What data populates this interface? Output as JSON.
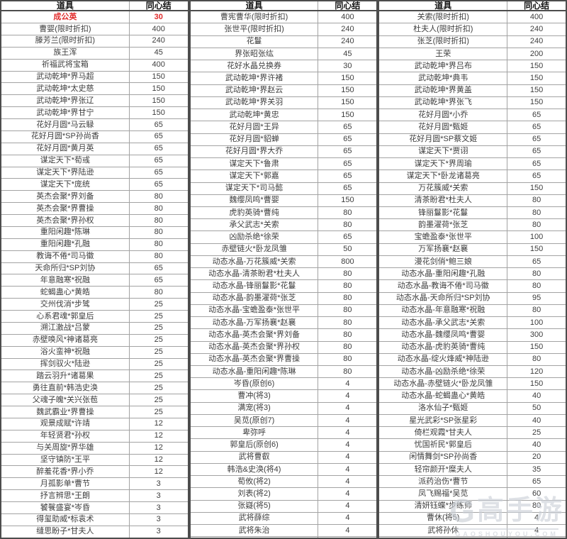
{
  "accent": {
    "highlight_color": "#e02b2b"
  },
  "watermark": {
    "logo_letter": "G",
    "brand": "高手游",
    "caption": "GAOSHOUYOU.COM"
  },
  "tables": [
    {
      "headers": [
        "道具",
        "同心结"
      ],
      "highlight_rows": [
        0
      ],
      "rows": [
        [
          "成公英",
          "30"
        ],
        [
          "曹婴(限时折扣)",
          "400"
        ],
        [
          "滕芳兰(限时折扣)",
          "240"
        ],
        [
          "族王浑",
          "45"
        ],
        [
          "祈福武将宝箱",
          "400"
        ],
        [
          "武动乾坤*界马超",
          "150"
        ],
        [
          "武动乾坤*太史慈",
          "150"
        ],
        [
          "武动乾坤*界张辽",
          "150"
        ],
        [
          "武动乾坤*界甘宁",
          "150"
        ],
        [
          "花好月圆*马云騄",
          "65"
        ],
        [
          "花好月圆*SP孙尚香",
          "65"
        ],
        [
          "花好月圆*黄月英",
          "65"
        ],
        [
          "谋定天下*荀彧",
          "65"
        ],
        [
          "谋定天下*界陆逊",
          "65"
        ],
        [
          "谋定天下*庞统",
          "65"
        ],
        [
          "英杰会聚*界刘备",
          "80"
        ],
        [
          "英杰会聚*界曹操",
          "80"
        ],
        [
          "英杰会聚*界孙权",
          "80"
        ],
        [
          "重阳闲趣*陈琳",
          "80"
        ],
        [
          "重阳闲趣*孔融",
          "80"
        ],
        [
          "教诲不倦*司马徽",
          "80"
        ],
        [
          "天命所归*SP刘协",
          "65"
        ],
        [
          "年意融寒*祝融",
          "65"
        ],
        [
          "蛇蝎蛊心*黄皓",
          "80"
        ],
        [
          "交州伐消*步骘",
          "25"
        ],
        [
          "心系君魂*郭皇后",
          "25"
        ],
        [
          "溯江激战*吕蒙",
          "25"
        ],
        [
          "赤壁唤风*神诸葛亮",
          "25"
        ],
        [
          "浴火蛮神*祝融",
          "25"
        ],
        [
          "挥剑驭火*陆逊",
          "25"
        ],
        [
          "踏云羽升*诸葛果",
          "25"
        ],
        [
          "勇往直前*韩浩史涣",
          "25"
        ],
        [
          "父魂子魄*关兴张苞",
          "25"
        ],
        [
          "魏武霸业*界曹操",
          "25"
        ],
        [
          "观景成赋*许靖",
          "12"
        ],
        [
          "年轻贤君*孙权",
          "12"
        ],
        [
          "与关周旋*界华雄",
          "12"
        ],
        [
          "坚守镇防*王平",
          "12"
        ],
        [
          "醉羞花香*界小乔",
          "12"
        ],
        [
          "月孤影单*曹节",
          "3"
        ],
        [
          "抒言辨思*王朗",
          "3"
        ],
        [
          "饕餮盛宴*岑昏",
          "3"
        ],
        [
          "得玺助威*标袁术",
          "3"
        ],
        [
          "缝思盼子*甘夫人",
          "3"
        ]
      ]
    },
    {
      "headers": [
        "道具",
        "同心结"
      ],
      "highlight_rows": [],
      "rows": [
        [
          "曹宪曹华(限时折扣)",
          "400"
        ],
        [
          "张世平(限时折扣)",
          "240"
        ],
        [
          "花鬘",
          "240"
        ],
        [
          "界张昭张纮",
          "45"
        ],
        [
          "花好水晶兑换券",
          "30"
        ],
        [
          "武动乾坤*界许褚",
          "150"
        ],
        [
          "武动乾坤*界赵云",
          "150"
        ],
        [
          "武动乾坤*界关羽",
          "150"
        ],
        [
          "武动乾坤*黄忠",
          "150"
        ],
        [
          "花好月圆*王异",
          "65"
        ],
        [
          "花好月圆*貂蝉",
          "65"
        ],
        [
          "花好月圆*界大乔",
          "65"
        ],
        [
          "谋定天下*鲁肃",
          "65"
        ],
        [
          "谋定天下*郭嘉",
          "65"
        ],
        [
          "谋定天下*司马懿",
          "65"
        ],
        [
          "魏缨凤鸣*曹婴",
          "150"
        ],
        [
          "虎豹英骑*曹纯",
          "80"
        ],
        [
          "承父武志*关索",
          "80"
        ],
        [
          "凶励杀绝*徐荣",
          "65"
        ],
        [
          "赤壁链火*卧龙凤雏",
          "50"
        ],
        [
          "动态水晶-万花簇威*关索",
          "800"
        ],
        [
          "动态水晶-清茶盼君*杜夫人",
          "80"
        ],
        [
          "动态水晶-锋丽鬘影*花鬘",
          "80"
        ],
        [
          "动态水晶-韵墨濯荷*张芝",
          "80"
        ],
        [
          "动态水晶-宝蟾盈泰*张世平",
          "80"
        ],
        [
          "动态水晶-万军扬襄*赵襄",
          "80"
        ],
        [
          "动态水晶-英杰会聚*界刘备",
          "80"
        ],
        [
          "动态水晶-英杰会聚*界孙权",
          "80"
        ],
        [
          "动态水晶-英杰会聚*界曹操",
          "80"
        ],
        [
          "动态水晶-重阳闲趣*陈琳",
          "80"
        ],
        [
          "岑昏(原创6)",
          "4"
        ],
        [
          "曹冲(将3)",
          "4"
        ],
        [
          "满宠(将3)",
          "4"
        ],
        [
          "吴苋(原创7)",
          "4"
        ],
        [
          "卑弥呼",
          "4"
        ],
        [
          "郭皇后(原创6)",
          "4"
        ],
        [
          "武将曹叡",
          "4"
        ],
        [
          "韩浩&史涣(将4)",
          "4"
        ],
        [
          "荀攸(将2)",
          "4"
        ],
        [
          "刘表(将2)",
          "4"
        ],
        [
          "张嶷(将5)",
          "4"
        ],
        [
          "武将薛综",
          "4"
        ],
        [
          "武将朱治",
          "4"
        ],
        [
          "",
          ""
        ]
      ]
    },
    {
      "headers": [
        "道具",
        "同心结"
      ],
      "highlight_rows": [],
      "rows": [
        [
          "关索(限时折扣)",
          "400"
        ],
        [
          "杜夫人(限时折扣)",
          "240"
        ],
        [
          "张芝(限时折扣)",
          "240"
        ],
        [
          "王荣",
          "200"
        ],
        [
          "武动乾坤*界吕布",
          "150"
        ],
        [
          "武动乾坤*典韦",
          "150"
        ],
        [
          "武动乾坤*界黄盖",
          "150"
        ],
        [
          "武动乾坤*界张飞",
          "150"
        ],
        [
          "花好月圆*小乔",
          "65"
        ],
        [
          "花好月圆*甄姬",
          "65"
        ],
        [
          "花好月圆*SP蔡文姬",
          "65"
        ],
        [
          "谋定天下*贾诩",
          "65"
        ],
        [
          "谋定天下*界周瑜",
          "65"
        ],
        [
          "谋定天下*卧龙诸葛亮",
          "65"
        ],
        [
          "万花簇威*关索",
          "150"
        ],
        [
          "清茶盼君*杜夫人",
          "80"
        ],
        [
          "锋丽鬘影*花鬘",
          "80"
        ],
        [
          "韵墨濯荷*张芝",
          "80"
        ],
        [
          "宝蟾盈泰*张世平",
          "100"
        ],
        [
          "万军扬襄*赵襄",
          "150"
        ],
        [
          "漫花剑俏*鲍三娘",
          "65"
        ],
        [
          "动态水晶-重阳闲趣*孔融",
          "80"
        ],
        [
          "动态水晶-教诲不倦*司马徽",
          "80"
        ],
        [
          "动态水晶-天命所归*SP刘协",
          "95"
        ],
        [
          "动态水晶-年意融寒*祝融",
          "80"
        ],
        [
          "动态水晶-承父武志*关索",
          "100"
        ],
        [
          "动态水晶-魏缨凤鸣*曹婴",
          "300"
        ],
        [
          "动态水晶-虎豹英骑*曹纯",
          "150"
        ],
        [
          "动态水晶-绽火烽威*神陆逊",
          "80"
        ],
        [
          "动态水晶-凶励杀绝*徐荣",
          "120"
        ],
        [
          "动态水晶-赤壁链火*卧龙凤雏",
          "150"
        ],
        [
          "动态水晶-蛇蝎蛊心*黄皓",
          "40"
        ],
        [
          "洛水仙子*甄姬",
          "50"
        ],
        [
          "星光武彩*SP张星彩",
          "40"
        ],
        [
          "倚栏观霞*甘夫人",
          "25"
        ],
        [
          "忧国祈民*郭皇后",
          "40"
        ],
        [
          "闲情舞剑*SP孙尚香",
          "20"
        ],
        [
          "轻帘颜开*糜夫人",
          "35"
        ],
        [
          "派药治伤*曹节",
          "65"
        ],
        [
          "凤飞赐福*吴苋",
          "60"
        ],
        [
          "清妍钰蝶*步练师",
          "80"
        ],
        [
          "曹休(将5)",
          "4"
        ],
        [
          "武将孙休",
          "4"
        ],
        [
          "",
          ""
        ]
      ]
    }
  ]
}
